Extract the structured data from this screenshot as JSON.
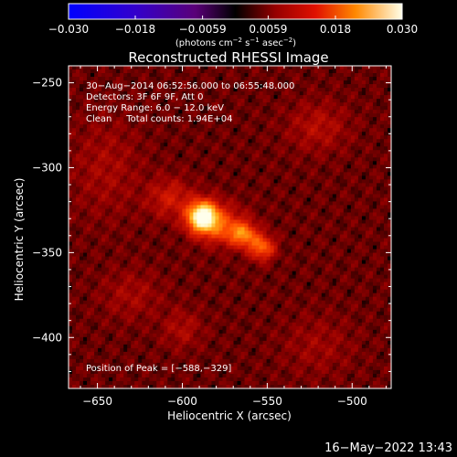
{
  "chart_data": {
    "type": "heatmap",
    "title": "Reconstructed RHESSI Image",
    "xlabel": "Heliocentric X (arcsec)",
    "ylabel": "Heliocentric Y (arcsec)",
    "xlim": [
      -667,
      -477
    ],
    "ylim": [
      -430,
      -240
    ],
    "x_ticks": [
      -650,
      -600,
      -550,
      -500
    ],
    "x_tick_labels": [
      "−650",
      "−600",
      "−550",
      "−500"
    ],
    "y_ticks": [
      -250,
      -300,
      -350,
      -400
    ],
    "y_tick_labels": [
      "−250",
      "−300",
      "−350",
      "−400"
    ],
    "colorbar": {
      "range": [
        -0.03,
        0.03
      ],
      "ticks": [
        -0.03,
        -0.018,
        -0.0059,
        0.0059,
        0.018,
        0.03
      ],
      "tick_labels": [
        "−0.030",
        "−0.018",
        "−0.0059",
        "0.0059",
        "0.018",
        "0.030"
      ],
      "unit_prefix": "(photons cm",
      "unit_exp1": "−2",
      "unit_mid1": " s",
      "unit_exp2": "−1",
      "unit_mid2": " asec",
      "unit_exp3": "−2",
      "unit_suffix": ")"
    },
    "info_lines": [
      "30−Aug−2014 06:52:56.000 to 06:55:48.000",
      "Detectors: 3F 6F 9F, Att 0",
      "Energy Range: 6.0 − 12.0 keV",
      "Clean     Total counts: 1.94E+04"
    ],
    "peak_label": "Position of Peak = [−588,−329]",
    "peak": {
      "x": -588,
      "y": -329,
      "value": 0.03
    },
    "sources": [
      {
        "x": -588,
        "y": -329,
        "sx": 6,
        "sy": 6,
        "amp": 0.03
      },
      {
        "x": -578,
        "y": -333,
        "sx": 10,
        "sy": 8,
        "amp": 0.008
      },
      {
        "x": -563,
        "y": -340,
        "sx": 5,
        "sy": 5,
        "amp": 0.011
      },
      {
        "x": -553,
        "y": -347,
        "sx": 5,
        "sy": 5,
        "amp": 0.013
      },
      {
        "x": -570,
        "y": -338,
        "sx": 7,
        "sy": 5,
        "amp": 0.006
      },
      {
        "x": -607,
        "y": -318,
        "sx": 9,
        "sy": 8,
        "amp": 0.006
      },
      {
        "x": -520,
        "y": -276,
        "sx": 12,
        "sy": 10,
        "amp": 0.004
      },
      {
        "x": -645,
        "y": -300,
        "sx": 14,
        "sy": 20,
        "amp": 0.003
      },
      {
        "x": -630,
        "y": -375,
        "sx": 12,
        "sy": 10,
        "amp": 0.003
      },
      {
        "x": -600,
        "y": -395,
        "sx": 8,
        "sy": 8,
        "amp": 0.0035
      },
      {
        "x": -520,
        "y": -405,
        "sx": 14,
        "sy": 12,
        "amp": 0.0025
      }
    ],
    "timestamp": "16−May−2022 13:43"
  }
}
